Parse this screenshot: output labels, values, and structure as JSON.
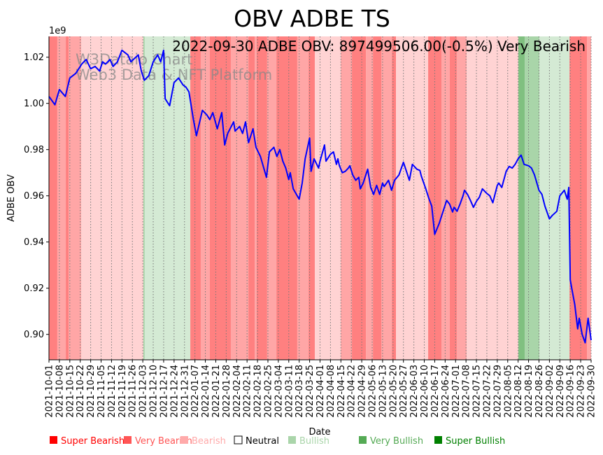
{
  "chart_data": {
    "type": "line",
    "title": "OBV ADBE TS",
    "annotation": "2022-09-30 ADBE OBV: 897499506.00(-0.5%) Very Bearish",
    "watermark": [
      "W3Dataio Chart",
      "Web3 Data & NFT Platform"
    ],
    "xlabel": "Date",
    "ylabel": "ADBE OBV",
    "y_multiplier_label": "1e9",
    "start_date": "2021-10-01",
    "xlim_days": [
      0,
      364
    ],
    "ylim": [
      0.889,
      1.029
    ],
    "y_ticks": [
      0.9,
      0.92,
      0.94,
      0.96,
      0.98,
      1.0,
      1.02
    ],
    "y_tick_labels": [
      "0.90",
      "0.92",
      "0.94",
      "0.96",
      "0.98",
      "1.00",
      "1.02"
    ],
    "x_tick_labels": [
      "2021-10-01",
      "2021-10-08",
      "2021-10-15",
      "2021-10-22",
      "2021-10-29",
      "2021-11-05",
      "2021-11-12",
      "2021-11-19",
      "2021-11-26",
      "2021-12-03",
      "2021-12-10",
      "2021-12-17",
      "2021-12-24",
      "2021-12-31",
      "2022-01-07",
      "2022-01-14",
      "2022-01-21",
      "2022-01-28",
      "2022-02-04",
      "2022-02-11",
      "2022-02-18",
      "2022-02-25",
      "2022-03-04",
      "2022-03-11",
      "2022-03-18",
      "2022-03-25",
      "2022-04-01",
      "2022-04-08",
      "2022-04-15",
      "2022-04-22",
      "2022-04-29",
      "2022-05-06",
      "2022-05-13",
      "2022-05-20",
      "2022-05-27",
      "2022-06-03",
      "2022-06-10",
      "2022-06-17",
      "2022-06-24",
      "2022-07-01",
      "2022-07-08",
      "2022-07-15",
      "2022-07-22",
      "2022-07-29",
      "2022-08-05",
      "2022-08-12",
      "2022-08-19",
      "2022-08-26",
      "2022-09-02",
      "2022-09-09",
      "2022-09-16",
      "2022-09-23",
      "2022-09-30"
    ],
    "series": [
      {
        "name": "OBV",
        "color": "#0000ff",
        "days": [
          0,
          4,
          7,
          11,
          14,
          18,
          20,
          22,
          25,
          28,
          31,
          34,
          36,
          38,
          41,
          43,
          46,
          49,
          53,
          55,
          60,
          62,
          64,
          67,
          70,
          73,
          75,
          77,
          78,
          81,
          84,
          87,
          90,
          92,
          94,
          97,
          99,
          103,
          106,
          108,
          110,
          113,
          116,
          118,
          120,
          124,
          125,
          128,
          130,
          132,
          134,
          137,
          139,
          142,
          146,
          148,
          151,
          153,
          155,
          157,
          159,
          161,
          162,
          164,
          168,
          170,
          172,
          175,
          176,
          178,
          181,
          182,
          185,
          186,
          189,
          191,
          193,
          194,
          195,
          197,
          199,
          201,
          202,
          204,
          206,
          208,
          209,
          211,
          214,
          216,
          218,
          220,
          222,
          224,
          225,
          228,
          230,
          232,
          235,
          238,
          240,
          242,
          244,
          247,
          249,
          250,
          253,
          255,
          257,
          259,
          262,
          265,
          267,
          269,
          271,
          272,
          274,
          276,
          278,
          279,
          281,
          283,
          285,
          287,
          289,
          291,
          294,
          296,
          298,
          301,
          302,
          304,
          307,
          309,
          311,
          313,
          315,
          317,
          319,
          322,
          324,
          326,
          329,
          331,
          333,
          336,
          338,
          341,
          343,
          346,
          348,
          349,
          350,
          351,
          353,
          355,
          356,
          358,
          360,
          362,
          364
        ],
        "values": [
          1.003,
          0.9994,
          1.006,
          1.003,
          1.011,
          1.013,
          1.015,
          1.017,
          1.019,
          1.015,
          1.016,
          1.014,
          1.018,
          1.017,
          1.019,
          1.016,
          1.018,
          1.023,
          1.021,
          1.018,
          1.021,
          1.014,
          1.01,
          1.012,
          1.018,
          1.021,
          1.018,
          1.023,
          1.002,
          0.999,
          1.009,
          1.011,
          1.008,
          1.007,
          1.005,
          0.993,
          0.986,
          0.997,
          0.995,
          0.993,
          0.996,
          0.989,
          0.996,
          0.982,
          0.987,
          0.992,
          0.988,
          0.99,
          0.987,
          0.992,
          0.983,
          0.989,
          0.981,
          0.977,
          0.968,
          0.979,
          0.981,
          0.977,
          0.98,
          0.975,
          0.972,
          0.967,
          0.97,
          0.963,
          0.9585,
          0.9655,
          0.976,
          0.985,
          0.9706,
          0.976,
          0.972,
          0.975,
          0.982,
          0.975,
          0.978,
          0.979,
          0.9736,
          0.976,
          0.973,
          0.97,
          0.9706,
          0.972,
          0.973,
          0.969,
          0.9667,
          0.968,
          0.963,
          0.9655,
          0.9715,
          0.9636,
          0.9606,
          0.9645,
          0.9606,
          0.9655,
          0.964,
          0.9667,
          0.9624,
          0.9667,
          0.969,
          0.9745,
          0.9706,
          0.9667,
          0.9736,
          0.9715,
          0.971,
          0.9685,
          0.963,
          0.959,
          0.9555,
          0.9433,
          0.948,
          0.954,
          0.958,
          0.9564,
          0.953,
          0.955,
          0.9533,
          0.9564,
          0.96,
          0.9624,
          0.9606,
          0.958,
          0.955,
          0.9576,
          0.9594,
          0.963,
          0.961,
          0.96,
          0.957,
          0.9645,
          0.9655,
          0.9636,
          0.9706,
          0.9727,
          0.972,
          0.9736,
          0.976,
          0.9776,
          0.9736,
          0.973,
          0.972,
          0.969,
          0.9624,
          0.9606,
          0.9555,
          0.95,
          0.9515,
          0.9533,
          0.96,
          0.9624,
          0.9585,
          0.9636,
          0.9236,
          0.92,
          0.913,
          0.9024,
          0.907,
          0.9,
          0.8964,
          0.907,
          0.8975
        ]
      }
    ],
    "regimes": [
      {
        "start": 0,
        "end": 5.6,
        "state": "super_bearish"
      },
      {
        "start": 5.6,
        "end": 11.3,
        "state": "very_bearish"
      },
      {
        "start": 11.3,
        "end": 13.2,
        "state": "super_bearish"
      },
      {
        "start": 13.2,
        "end": 21.6,
        "state": "very_bearish"
      },
      {
        "start": 21.6,
        "end": 63.4,
        "state": "bearish"
      },
      {
        "start": 63.4,
        "end": 64.3,
        "state": "very_bullish"
      },
      {
        "start": 64.3,
        "end": 94.9,
        "state": "bullish"
      },
      {
        "start": 94.9,
        "end": 101.9,
        "state": "super_bearish"
      },
      {
        "start": 101.9,
        "end": 108,
        "state": "very_bearish"
      },
      {
        "start": 108,
        "end": 122.1,
        "state": "super_bearish"
      },
      {
        "start": 122.1,
        "end": 133.9,
        "state": "very_bearish"
      },
      {
        "start": 133.9,
        "end": 138.1,
        "state": "super_bearish"
      },
      {
        "start": 138.1,
        "end": 139.5,
        "state": "very_bearish"
      },
      {
        "start": 139.5,
        "end": 146.5,
        "state": "super_bearish"
      },
      {
        "start": 146.5,
        "end": 152.7,
        "state": "very_bearish"
      },
      {
        "start": 152.7,
        "end": 166.7,
        "state": "super_bearish"
      },
      {
        "start": 166.7,
        "end": 174.3,
        "state": "very_bearish"
      },
      {
        "start": 174.3,
        "end": 178.5,
        "state": "super_bearish"
      },
      {
        "start": 178.5,
        "end": 195.9,
        "state": "bearish"
      },
      {
        "start": 195.9,
        "end": 203.4,
        "state": "very_bearish"
      },
      {
        "start": 203.4,
        "end": 212.8,
        "state": "super_bearish"
      },
      {
        "start": 212.8,
        "end": 217.5,
        "state": "very_bearish"
      },
      {
        "start": 217.5,
        "end": 223.1,
        "state": "super_bearish"
      },
      {
        "start": 223.1,
        "end": 230.2,
        "state": "very_bearish"
      },
      {
        "start": 230.2,
        "end": 233,
        "state": "super_bearish"
      },
      {
        "start": 233,
        "end": 254.6,
        "state": "bearish"
      },
      {
        "start": 254.6,
        "end": 263.5,
        "state": "super_bearish"
      },
      {
        "start": 263.5,
        "end": 269.1,
        "state": "very_bearish"
      },
      {
        "start": 269.1,
        "end": 273.8,
        "state": "super_bearish"
      },
      {
        "start": 273.8,
        "end": 280.4,
        "state": "very_bearish"
      },
      {
        "start": 280.4,
        "end": 315.2,
        "state": "bearish"
      },
      {
        "start": 315.2,
        "end": 319.4,
        "state": "super_bullish"
      },
      {
        "start": 319.4,
        "end": 329.3,
        "state": "very_bullish"
      },
      {
        "start": 329.3,
        "end": 349.5,
        "state": "bullish"
      },
      {
        "start": 349.5,
        "end": 361.2,
        "state": "super_bearish"
      },
      {
        "start": 361.2,
        "end": 364,
        "state": "very_bearish"
      }
    ],
    "regime_colors": {
      "super_bearish": "#ff8080",
      "very_bearish": "#ffa6a6",
      "bearish": "#ffd3d3",
      "bullish": "#d4ead4",
      "very_bullish": "#a9d5a9",
      "super_bullish": "#80c080"
    },
    "legend_position": "bottom",
    "legend": [
      {
        "label": "Super Bearish",
        "color": "#ff0000",
        "filled": true
      },
      {
        "label": "Very Bearish",
        "color": "#ff5555",
        "filled": true
      },
      {
        "label": "Bearish",
        "color": "#ffaaaa",
        "filled": true
      },
      {
        "label": "Neutral",
        "color": "#000000",
        "filled": false
      },
      {
        "label": "Bullish",
        "color": "#aad5aa",
        "filled": true
      },
      {
        "label": "Very Bullish",
        "color": "#55aa55",
        "filled": true
      },
      {
        "label": "Super Bullish",
        "color": "#008000",
        "filled": true
      }
    ],
    "grid": "x-dotted"
  }
}
